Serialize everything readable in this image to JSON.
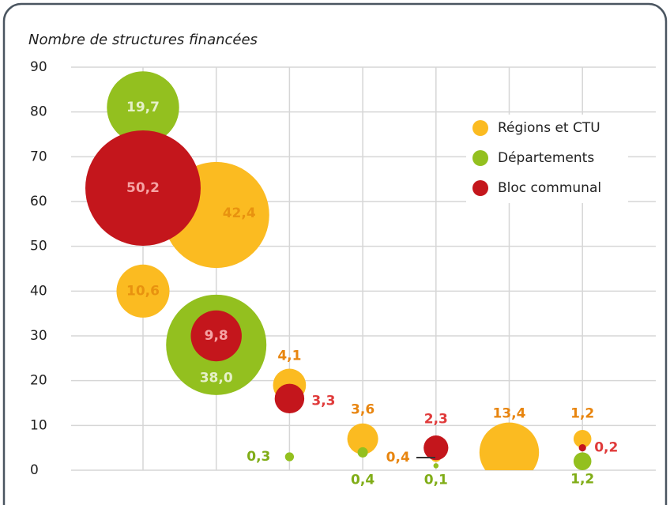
{
  "chart_data": {
    "type": "bubble",
    "y_label": "Nombre de structures financées",
    "categories": [
      null,
      null,
      null,
      null,
      null,
      null,
      null
    ],
    "ylim": [
      0,
      90
    ],
    "yticks": [
      0,
      10,
      20,
      30,
      40,
      50,
      60,
      70,
      80,
      90
    ],
    "grid": true,
    "legend": "upper right",
    "series": [
      {
        "name": "Régions et CTU",
        "color": "#fbbb21",
        "label_color": "#e8850f",
        "values": [
          40,
          57,
          19,
          7,
          3,
          4,
          7
        ],
        "sizes": [
          10.6,
          42.4,
          4.1,
          3.6,
          0.4,
          13.4,
          1.2
        ],
        "value_labels": [
          "10,6",
          "42,4",
          "4,1",
          "3,6",
          "0,4",
          "13,4",
          "1,2"
        ]
      },
      {
        "name": "Départements",
        "color": "#93c01f",
        "label_color": "#80ad17",
        "values": [
          81,
          28,
          3,
          4,
          1,
          null,
          2
        ],
        "sizes": [
          19.7,
          38.0,
          0.3,
          0.4,
          0.1,
          null,
          1.2
        ],
        "value_labels": [
          "19,7",
          "38,0",
          "0,3",
          "0,4",
          "0,1",
          null,
          "1,2"
        ]
      },
      {
        "name": "Bloc communal",
        "color": "#c4161c",
        "label_color": "#e03a3a",
        "values": [
          63,
          30,
          16,
          null,
          5,
          null,
          5
        ],
        "sizes": [
          50.2,
          9.8,
          3.3,
          null,
          2.3,
          null,
          0.2
        ],
        "value_labels": [
          "50,2",
          "9,8",
          "3,3",
          null,
          "2,3",
          null,
          "0,2"
        ]
      }
    ]
  }
}
